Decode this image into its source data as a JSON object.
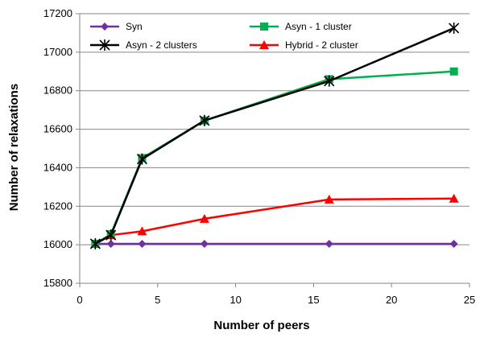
{
  "chart_data": {
    "type": "line",
    "xlabel": "Number of peers",
    "ylabel": "Number of relaxations",
    "xlim": [
      0,
      25
    ],
    "ylim": [
      15800,
      17200
    ],
    "x_ticks": [
      0,
      5,
      10,
      15,
      20,
      25
    ],
    "y_ticks": [
      15800,
      16000,
      16200,
      16400,
      16600,
      16800,
      17000,
      17200
    ],
    "grid": "horizontal",
    "legend_position": "top-inside",
    "series": [
      {
        "name": "Syn",
        "color": "#7030A0",
        "marker": "diamond",
        "x": [
          1,
          2,
          4,
          8,
          16,
          24
        ],
        "y": [
          16005,
          16005,
          16005,
          16005,
          16005,
          16005
        ]
      },
      {
        "name": "Asyn - 1 cluster",
        "color": "#00B050",
        "marker": "square",
        "x": [
          1,
          2,
          4,
          8,
          16,
          24
        ],
        "y": [
          16005,
          16055,
          16450,
          16645,
          16860,
          16900
        ]
      },
      {
        "name": "Asyn - 2 clusters",
        "color": "#000000",
        "marker": "star",
        "x": [
          1,
          2,
          4,
          8,
          16,
          24
        ],
        "y": [
          16005,
          16050,
          16445,
          16645,
          16850,
          17125
        ]
      },
      {
        "name": "Hybrid - 2 cluster",
        "color": "#FF0000",
        "marker": "triangle",
        "x": [
          1,
          2,
          4,
          8,
          16,
          24
        ],
        "y": [
          16005,
          16050,
          16070,
          16135,
          16235,
          16240
        ]
      }
    ]
  }
}
